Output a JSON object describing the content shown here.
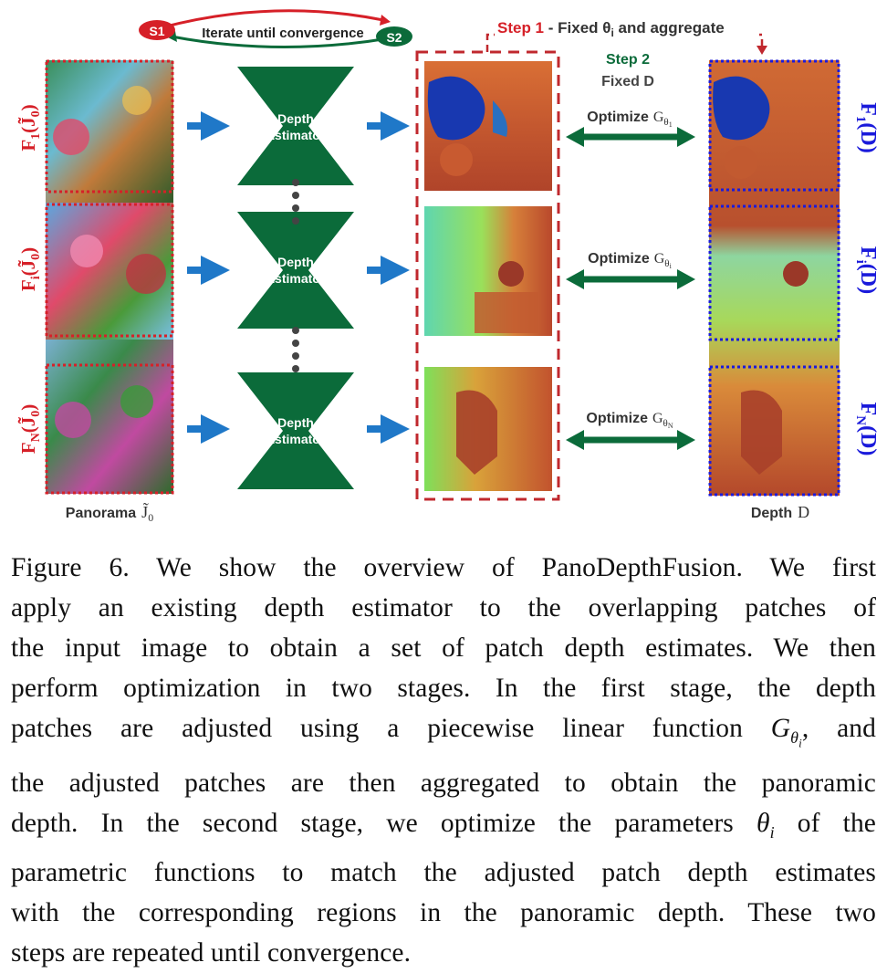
{
  "figure": {
    "loop": {
      "s1": "S1",
      "s2": "S2",
      "label": "Iterate until convergence"
    },
    "step1": {
      "prefix": "Step 1",
      "text": " - Fixed θ",
      "sub": "i",
      "suffix": " and aggregate"
    },
    "step2": {
      "title": "Step 2",
      "text": "Fixed D"
    },
    "estimators": [
      {
        "line1": "Depth",
        "line2": "Estimator"
      },
      {
        "line1": "Depth",
        "line2": "Estimator"
      },
      {
        "line1": "Depth",
        "line2": "Estimator"
      }
    ],
    "optimize": [
      {
        "label": "Optimize",
        "g": "G",
        "sub": "θ",
        "subsub": "1"
      },
      {
        "label": "Optimize",
        "g": "G",
        "sub": "θ",
        "subsub": "i"
      },
      {
        "label": "Optimize",
        "g": "G",
        "sub": "θ",
        "subsub": "N"
      }
    ],
    "left_labels": [
      {
        "f": "F",
        "sub": "1",
        "arg": "(J̃",
        "argsub": "0",
        "close": ")"
      },
      {
        "f": "F",
        "sub": "i",
        "arg": "(J̃",
        "argsub": "0",
        "close": ")"
      },
      {
        "f": "F",
        "sub": "N",
        "arg": "(J̃",
        "argsub": "0",
        "close": ")"
      }
    ],
    "right_labels": [
      {
        "f": "F",
        "sub": "1",
        "arg": "(D)"
      },
      {
        "f": "F",
        "sub": "i",
        "arg": "(D)"
      },
      {
        "f": "F",
        "sub": "N",
        "arg": "(D)"
      }
    ],
    "panorama_label": "Panorama",
    "panorama_sym": "J̃",
    "panorama_sub": "0",
    "depth_label": "Depth",
    "depth_sym": "D",
    "colors": {
      "red": "#d62028",
      "blue": "#1a1adb",
      "green": "#0b6b3a",
      "arrow_blue": "#1f78c8"
    }
  },
  "caption": {
    "lines": [
      "Figure 6.  We show the overview of PanoDepthFusion.  We first",
      "apply an existing depth estimator to the overlapping patches of",
      "the input image to obtain a set of patch depth estimates. We then",
      "perform optimization in two stages.  In the first stage, the depth",
      "patches are adjusted using a piecewise linear function",
      "the adjusted patches are then aggregated to obtain the panoramic",
      "depth. In the second stage, we optimize the parameters",
      "parametric functions to match the adjusted patch depth estimates",
      "with the corresponding regions in the panoramic depth. These two",
      "steps are repeated until convergence."
    ],
    "line5_math": "G",
    "line5_sub": "θ",
    "line5_subsub": "i",
    "line5_tail": ", and",
    "line7_math": "θ",
    "line7_sub": "i",
    "line7_tail": " of the"
  }
}
